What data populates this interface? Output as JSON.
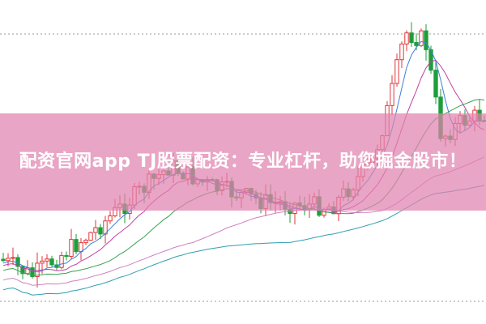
{
  "banner": {
    "text": "配资官网app TJ股票配资：专业杠杆，助您掘金股市！"
  }
}
